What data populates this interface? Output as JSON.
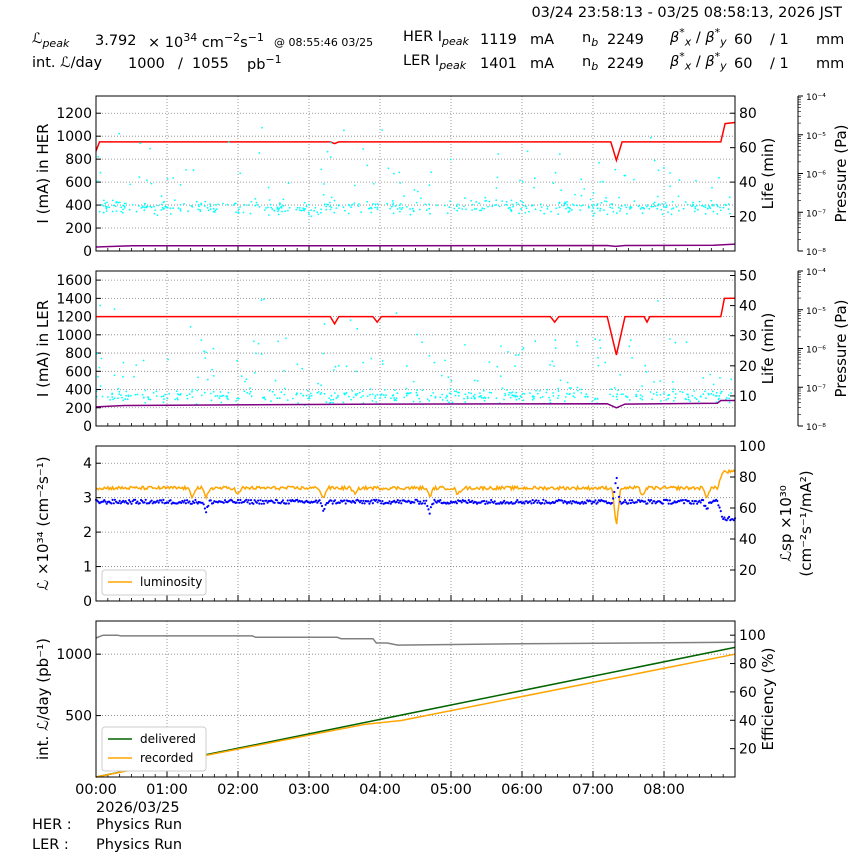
{
  "header": {
    "time_range": "03/24 23:58:13 - 03/25 08:58:13, 2026 JST",
    "lpeak_label": "ℒ",
    "lpeak_sub": "peak",
    "lpeak_value": "3.792",
    "lpeak_unit_pre": "× 10",
    "lpeak_unit_exp": "34",
    "lpeak_unit_cm": "cm",
    "lpeak_unit_cm_exp": "−2",
    "lpeak_unit_s": "s",
    "lpeak_unit_s_exp": "−1",
    "lpeak_time": "@ 08:55:46 03/25",
    "intl_label": "int. ℒ/day",
    "intl_recorded": "1000",
    "intl_slash": "/",
    "intl_delivered": "1055",
    "intl_unit": "pb",
    "intl_unit_exp": "−1",
    "her_label": "HER I",
    "her_sub": "peak",
    "her_value": "1119",
    "her_unit": "mA",
    "ler_label": "LER I",
    "ler_sub": "peak",
    "ler_value": "1401",
    "ler_unit": "mA",
    "nb_label": "n",
    "nb_sub": "b",
    "nb_her": "2249",
    "nb_ler": "2249",
    "beta_label": "β",
    "beta_x_sub": "x",
    "beta_y_sub": "y",
    "beta_sup": "*",
    "beta_slash": "/",
    "beta_x_val": "60",
    "beta_y_val": "/ 1",
    "beta_unit": "mm"
  },
  "footer": {
    "her_label": "HER :",
    "her_status": "Physics Run",
    "ler_label": "LER :",
    "ler_status": "Physics Run"
  },
  "colors": {
    "current": "#ff0000",
    "lifetime": "#00ffff",
    "pressure": "#800080",
    "luminosity": "#ffa500",
    "specific": "#0000ff",
    "delivered": "#006400",
    "recorded": "#ffa500",
    "efficiency": "#808080",
    "grid": "#808080"
  },
  "chart_data": [
    {
      "type": "line",
      "panel": "her",
      "ylabel": "I (mA) in HER",
      "ylim": [
        0,
        1350
      ],
      "yticks": [
        0,
        200,
        400,
        600,
        800,
        1000,
        1200
      ],
      "y2label": "Life (min)",
      "y2lim": [
        0,
        90
      ],
      "y2ticks": [
        20,
        40,
        60,
        80
      ],
      "y3label": "Pressure (Pa)",
      "y3ticks": [
        "10⁻⁸",
        "10⁻⁷",
        "10⁻⁶",
        "10⁻⁵",
        "10⁻⁴"
      ],
      "xlim": [
        0,
        9
      ],
      "series": [
        {
          "key": "current",
          "x": [
            0,
            0.05,
            0.3,
            3.3,
            3.36,
            3.42,
            6.7,
            7.25,
            7.33,
            7.41,
            7.45,
            8.8,
            8.86,
            9.0
          ],
          "y": [
            870,
            950,
            950,
            950,
            935,
            950,
            950,
            950,
            790,
            950,
            950,
            950,
            1110,
            1119
          ]
        },
        {
          "key": "lifetime",
          "style": "dots",
          "center": 380,
          "spread": 60,
          "outlier_max": 1080
        },
        {
          "key": "pressure",
          "x": [
            0,
            0.5,
            3.0,
            7.2,
            7.32,
            7.45,
            8.7,
            9.0
          ],
          "y": [
            35,
            45,
            45,
            48,
            40,
            48,
            50,
            60
          ]
        }
      ]
    },
    {
      "type": "line",
      "panel": "ler",
      "ylabel": "I (mA) in LER",
      "ylim": [
        0,
        1700
      ],
      "yticks": [
        0,
        200,
        400,
        600,
        800,
        1000,
        1200,
        1400,
        1600
      ],
      "y2label": "Life (min)",
      "y2lim": [
        0,
        51.5
      ],
      "y2ticks": [
        10,
        20,
        30,
        40,
        50
      ],
      "y3label": "Pressure (Pa)",
      "y3ticks": [
        "10⁻⁸",
        "10⁻⁷",
        "10⁻⁶",
        "10⁻⁵",
        "10⁻⁴"
      ],
      "xlim": [
        0,
        9
      ],
      "series": [
        {
          "key": "current",
          "x": [
            0,
            3.3,
            3.36,
            3.42,
            3.9,
            3.96,
            4.02,
            6.4,
            6.46,
            6.52,
            7.2,
            7.33,
            7.45,
            7.72,
            7.76,
            7.8,
            8.8,
            8.85,
            9.0
          ],
          "y": [
            1200,
            1200,
            1120,
            1200,
            1200,
            1140,
            1200,
            1200,
            1140,
            1200,
            1200,
            780,
            1200,
            1200,
            1140,
            1200,
            1200,
            1400,
            1401
          ]
        },
        {
          "key": "lifetime",
          "style": "dots",
          "center": 330,
          "spread": 80,
          "outlier_max": 1600
        },
        {
          "key": "pressure",
          "x": [
            0,
            0.4,
            4.0,
            7.2,
            7.33,
            7.45,
            8.75,
            8.8,
            9.0
          ],
          "y": [
            210,
            225,
            240,
            245,
            200,
            240,
            250,
            280,
            280
          ]
        }
      ]
    },
    {
      "type": "line",
      "panel": "lumi",
      "ylabel": "ℒ ×10³⁴ (cm⁻²s⁻¹)",
      "ylim": [
        0,
        4.5
      ],
      "yticks": [
        0,
        1,
        2,
        3,
        4
      ],
      "y2label": "ℒsp ×10³⁰",
      "y2label2": "(cm⁻²s⁻¹/mA²)",
      "y2lim": [
        0,
        100
      ],
      "y2ticks": [
        20,
        40,
        60,
        80,
        100
      ],
      "xlim": [
        0,
        9
      ],
      "legend": [
        {
          "key": "luminosity",
          "label": "luminosity"
        }
      ],
      "legend_loc": "lower-left",
      "series": [
        {
          "key": "luminosity",
          "base": 3.28,
          "noise": 0.05,
          "dips": [
            [
              1.35,
              0.25
            ],
            [
              1.55,
              0.3
            ],
            [
              2.0,
              0.2
            ],
            [
              3.2,
              0.3
            ],
            [
              3.65,
              0.2
            ],
            [
              4.7,
              0.25
            ],
            [
              5.1,
              0.2
            ],
            [
              7.33,
              1.1
            ],
            [
              7.7,
              0.2
            ],
            [
              8.6,
              0.25
            ]
          ],
          "end": 3.75
        },
        {
          "key": "specific",
          "style": "dots",
          "base": 2.88,
          "noise": 0.06,
          "end": 2.4
        }
      ]
    },
    {
      "type": "line",
      "panel": "intl",
      "ylabel": "int. ℒ/day (pb⁻¹)",
      "ylim": [
        0,
        1270
      ],
      "yticks": [
        500,
        1000
      ],
      "y2label": "Efficiency (%)",
      "y2lim": [
        0,
        110
      ],
      "y2ticks": [
        20,
        40,
        60,
        80,
        100
      ],
      "xlabel_ticks": [
        "00:00",
        "01:00",
        "02:00",
        "03:00",
        "04:00",
        "05:00",
        "06:00",
        "07:00",
        "08:00"
      ],
      "date_label": "2026/03/25",
      "xlim": [
        0,
        9
      ],
      "legend": [
        {
          "key": "delivered",
          "label": "delivered"
        },
        {
          "key": "recorded",
          "label": "recorded"
        }
      ],
      "legend_loc": "lower-left",
      "series": [
        {
          "key": "delivered",
          "x": [
            0,
            9
          ],
          "y": [
            0,
            1055
          ]
        },
        {
          "key": "recorded",
          "x": [
            0,
            3.0,
            3.8,
            4.3,
            9
          ],
          "y": [
            0,
            340,
            430,
            460,
            1000
          ]
        },
        {
          "key": "efficiency",
          "axis": "y2",
          "x": [
            0,
            0.05,
            0.1,
            0.3,
            0.35,
            2.2,
            2.25,
            3.4,
            3.45,
            3.9,
            3.95,
            4.1,
            4.25,
            6.0,
            9.0
          ],
          "y": [
            98,
            99,
            100,
            100,
            99.5,
            99.5,
            98.5,
            98.5,
            97.5,
            97.5,
            94.5,
            94.5,
            93,
            94,
            95
          ]
        }
      ]
    }
  ]
}
